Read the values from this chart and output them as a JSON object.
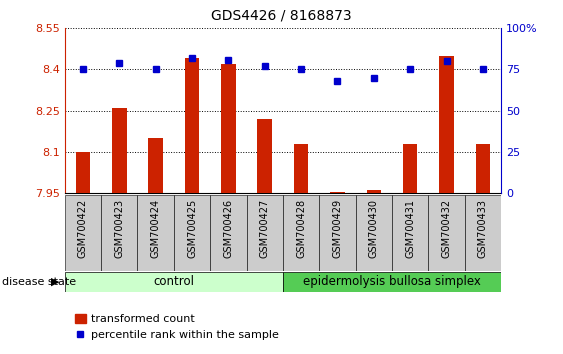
{
  "title": "GDS4426 / 8168873",
  "samples": [
    "GSM700422",
    "GSM700423",
    "GSM700424",
    "GSM700425",
    "GSM700426",
    "GSM700427",
    "GSM700428",
    "GSM700429",
    "GSM700430",
    "GSM700431",
    "GSM700432",
    "GSM700433"
  ],
  "bar_values": [
    8.1,
    8.26,
    8.15,
    8.44,
    8.42,
    8.22,
    8.13,
    7.952,
    7.96,
    8.13,
    8.45,
    8.13
  ],
  "dot_values": [
    75,
    79,
    75,
    82,
    81,
    77,
    75,
    68,
    70,
    75,
    80,
    75
  ],
  "ymin": 7.95,
  "ymax": 8.55,
  "y2min": 0,
  "y2max": 100,
  "yticks": [
    7.95,
    8.1,
    8.25,
    8.4,
    8.55
  ],
  "y2ticks": [
    0,
    25,
    50,
    75,
    100
  ],
  "y2ticklabels": [
    "0",
    "25",
    "50",
    "75",
    "100%"
  ],
  "bar_color": "#cc2200",
  "dot_color": "#0000cc",
  "grid_color": "#000000",
  "control_color": "#ccffcc",
  "ebs_color": "#55cc55",
  "control_label": "control",
  "ebs_label": "epidermolysis bullosa simplex",
  "control_samples": 6,
  "ebs_samples": 6,
  "legend_bar_label": "transformed count",
  "legend_dot_label": "percentile rank within the sample",
  "disease_label": "disease state",
  "ylabel_color": "#cc2200",
  "y2label_color": "#0000cc",
  "bar_width": 0.4,
  "base_value": 7.95,
  "tick_box_color": "#cccccc"
}
